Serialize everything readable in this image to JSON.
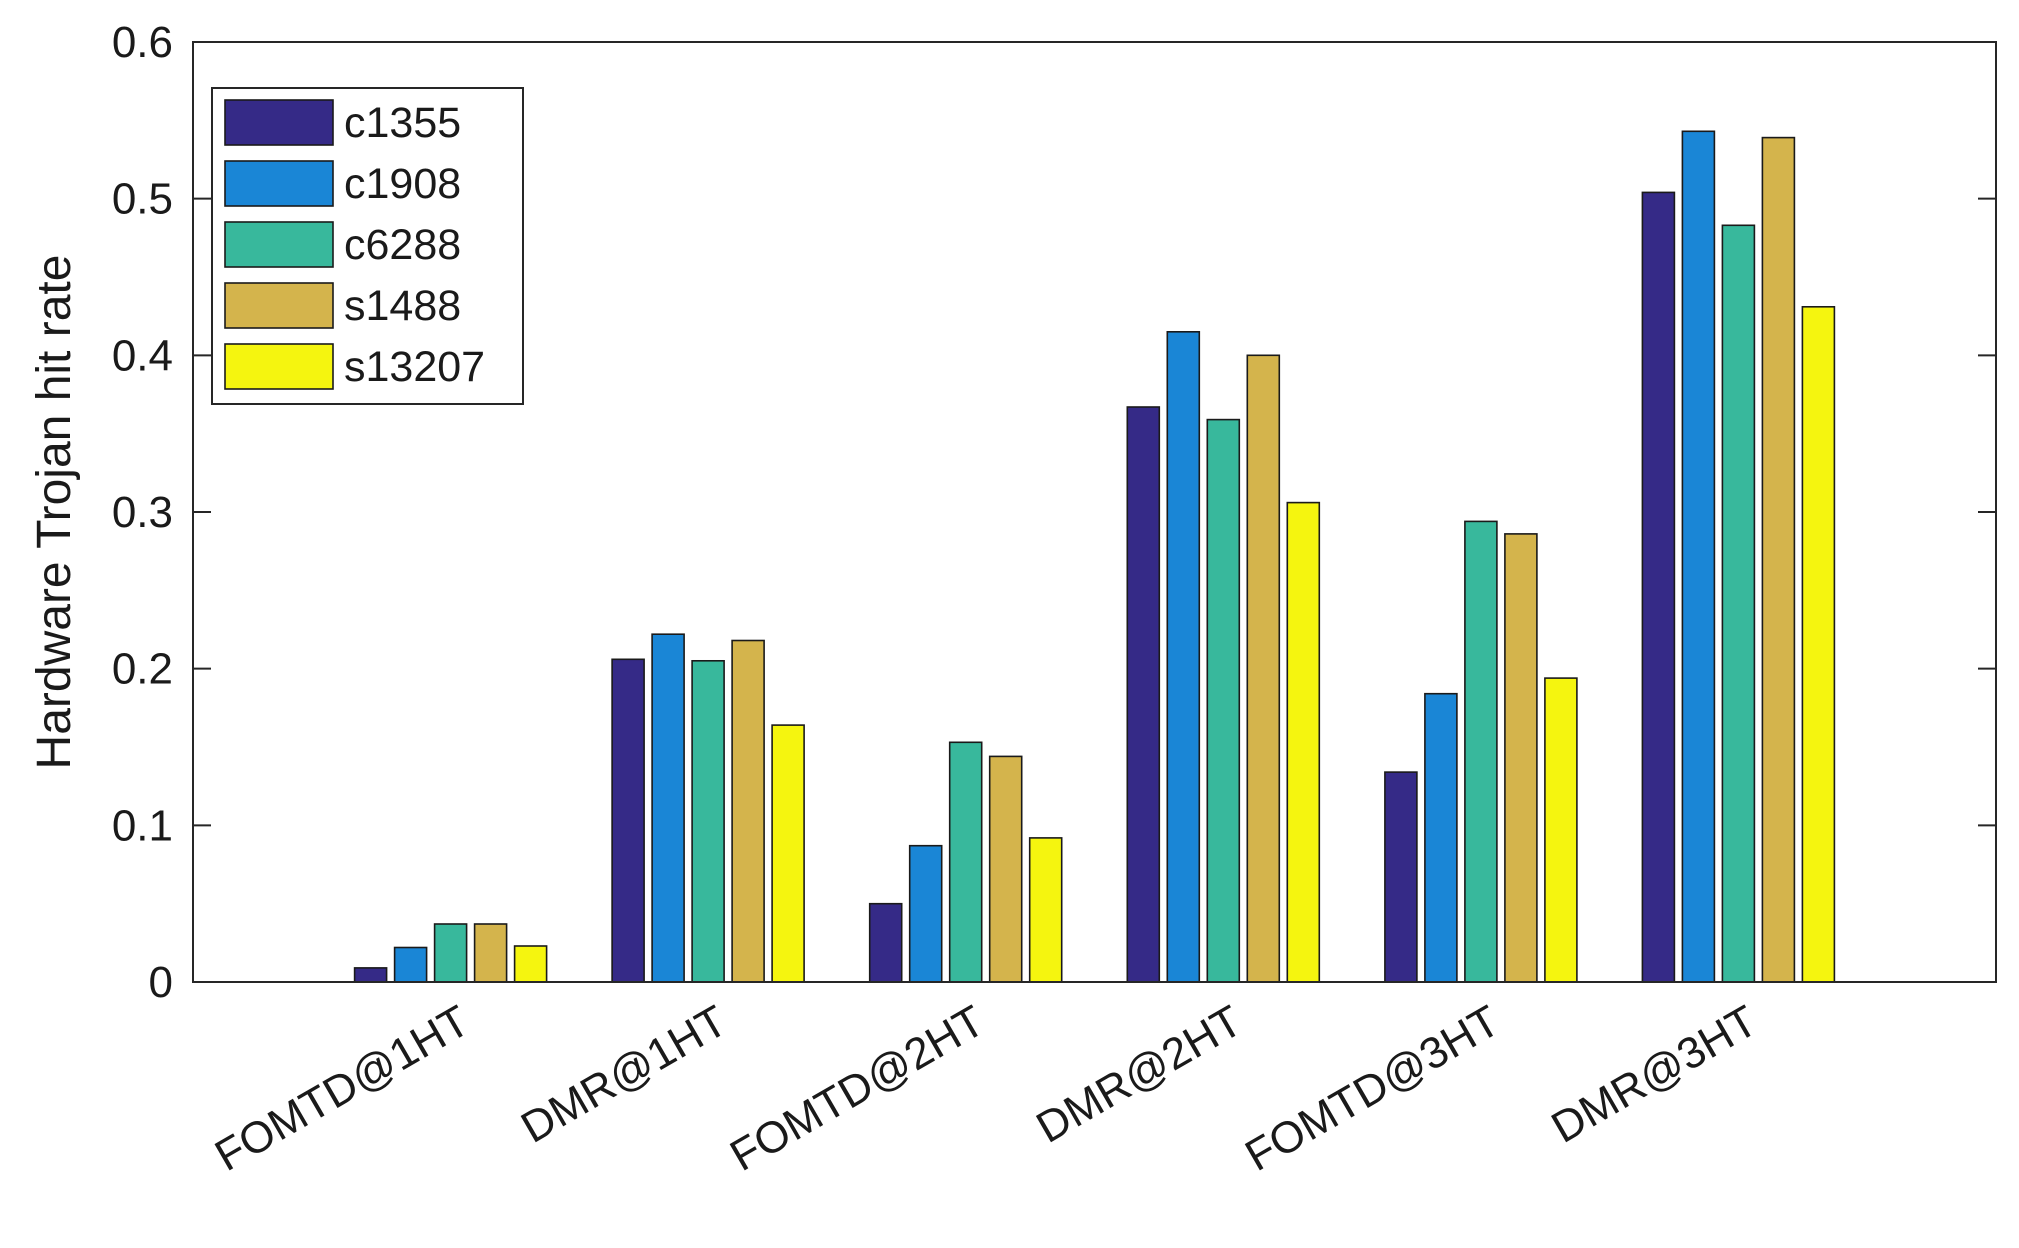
{
  "chart_data": {
    "type": "bar",
    "title": "",
    "xlabel": "",
    "ylabel": "Hardware Trojan hit rate",
    "ylim": [
      0,
      0.6
    ],
    "yticks": [
      0,
      0.1,
      0.2,
      0.3,
      0.4,
      0.5,
      0.6
    ],
    "ytick_labels": [
      "0",
      "0.1",
      "0.2",
      "0.3",
      "0.4",
      "0.5",
      "0.6"
    ],
    "grid": false,
    "legend_position": "top-left",
    "categories": [
      "FOMTD@1HT",
      "DMR@1HT",
      "FOMTD@2HT",
      "DMR@2HT",
      "FOMTD@3HT",
      "DMR@3HT"
    ],
    "series": [
      {
        "name": "c1355",
        "color": "#352a87",
        "values": [
          0.009,
          0.206,
          0.05,
          0.367,
          0.134,
          0.504
        ]
      },
      {
        "name": "c1908",
        "color": "#1a86d6",
        "values": [
          0.022,
          0.222,
          0.087,
          0.415,
          0.184,
          0.543
        ]
      },
      {
        "name": "c6288",
        "color": "#38b89c",
        "values": [
          0.037,
          0.205,
          0.153,
          0.359,
          0.294,
          0.483
        ]
      },
      {
        "name": "s1488",
        "color": "#d4b44c",
        "values": [
          0.037,
          0.218,
          0.144,
          0.4,
          0.286,
          0.539
        ]
      },
      {
        "name": "s13207",
        "color": "#f5f50f",
        "values": [
          0.023,
          0.164,
          0.092,
          0.306,
          0.194,
          0.431
        ]
      }
    ]
  }
}
